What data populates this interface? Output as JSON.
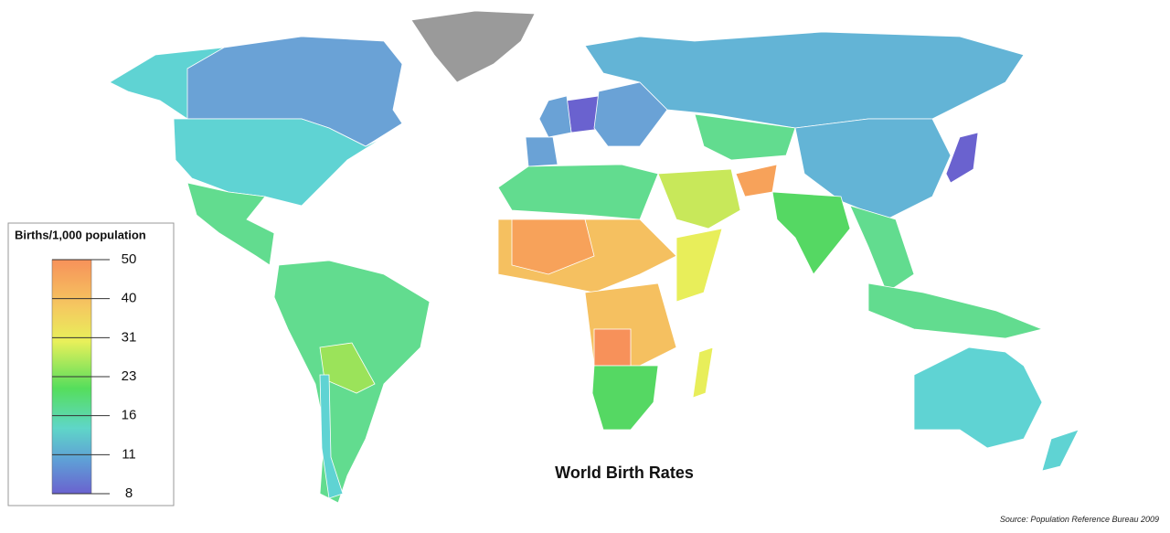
{
  "title": "World Birth Rates",
  "legend": {
    "title": "Births/1,000 population",
    "ticks": [
      50,
      40,
      31,
      23,
      16,
      11,
      8
    ]
  },
  "source": "Source: Population Reference Bureau 2009"
}
